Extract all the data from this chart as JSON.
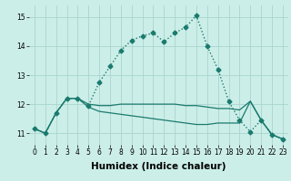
{
  "xlabel": "Humidex (Indice chaleur)",
  "x_values": [
    0,
    1,
    2,
    3,
    4,
    5,
    6,
    7,
    8,
    9,
    10,
    11,
    12,
    13,
    14,
    15,
    16,
    17,
    18,
    19,
    20,
    21,
    22,
    23
  ],
  "series": [
    {
      "y": [
        11.15,
        11.0,
        11.7,
        12.2,
        12.2,
        11.95,
        12.75,
        13.3,
        13.85,
        14.2,
        14.35,
        14.45,
        14.15,
        14.45,
        14.65,
        15.05,
        14.0,
        13.2,
        12.1,
        11.45,
        11.05,
        11.45,
        10.95,
        10.8
      ],
      "color": "#1a7a6e",
      "linestyle": "dotted",
      "marker": "D",
      "markersize": 2.5,
      "linewidth": 1.0
    },
    {
      "y": [
        11.15,
        11.0,
        11.7,
        12.2,
        12.2,
        12.0,
        11.95,
        11.95,
        12.0,
        12.0,
        12.0,
        12.0,
        12.0,
        12.0,
        11.95,
        11.95,
        11.9,
        11.85,
        11.85,
        11.8,
        12.1,
        11.45,
        10.95,
        10.8
      ],
      "color": "#1a7a6e",
      "linestyle": "solid",
      "marker": null,
      "markersize": 0,
      "linewidth": 0.9
    },
    {
      "y": [
        11.15,
        11.0,
        11.7,
        12.2,
        12.2,
        11.9,
        11.75,
        11.7,
        11.65,
        11.6,
        11.55,
        11.5,
        11.45,
        11.4,
        11.35,
        11.3,
        11.3,
        11.35,
        11.35,
        11.35,
        12.1,
        11.45,
        10.95,
        10.8
      ],
      "color": "#1a7a6e",
      "linestyle": "solid",
      "marker": null,
      "markersize": 0,
      "linewidth": 0.9
    }
  ],
  "ylim": [
    10.6,
    15.4
  ],
  "xlim": [
    -0.5,
    23.5
  ],
  "yticks": [
    11,
    12,
    13,
    14,
    15
  ],
  "xticks": [
    0,
    1,
    2,
    3,
    4,
    5,
    6,
    7,
    8,
    9,
    10,
    11,
    12,
    13,
    14,
    15,
    16,
    17,
    18,
    19,
    20,
    21,
    22,
    23
  ],
  "bg_color": "#cceee8",
  "grid_color": "#aad4ce",
  "line_color": "#1a7a6e",
  "tick_fontsize": 5.5,
  "label_fontsize": 7.5
}
